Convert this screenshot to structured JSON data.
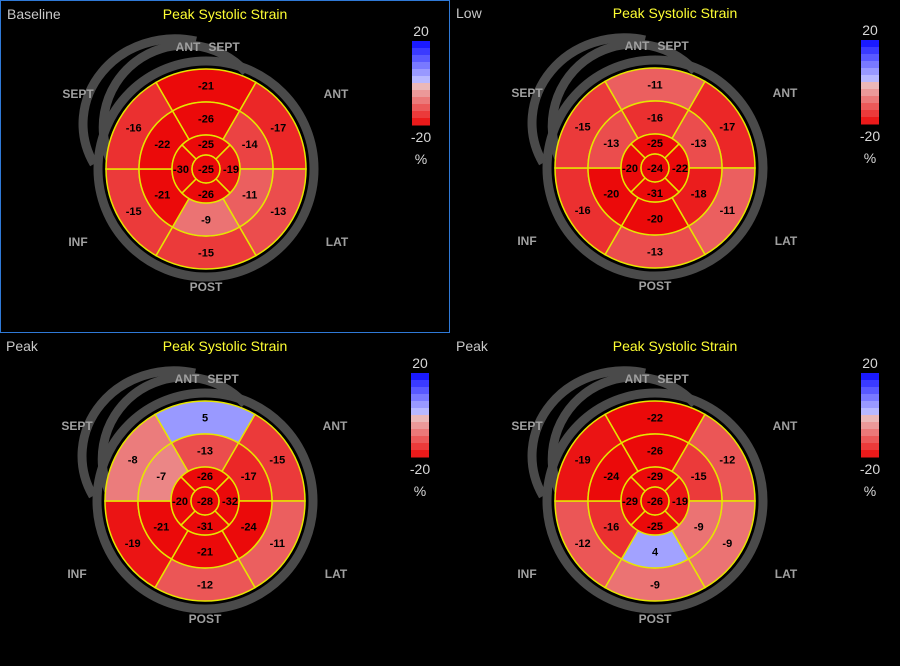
{
  "panels": [
    {
      "label": "Baseline",
      "title": "Peak Systolic Strain",
      "selected": true,
      "orientation": {
        "ant_sept": "ANT",
        "sept_top": "SEPT",
        "sept": "SEPT",
        "ant": "ANT",
        "inf": "INF",
        "lat": "LAT",
        "post": "POST"
      },
      "segments": {
        "outer": [
          -21,
          -17,
          -13,
          -15,
          -15,
          -16
        ],
        "mid": [
          -26,
          -14,
          -11,
          -9,
          -21,
          -22
        ],
        "inner": [
          -25,
          -19,
          -26,
          -30
        ],
        "apex": -25
      },
      "legend": {
        "max": "20",
        "min": "-20",
        "unit": "%"
      }
    },
    {
      "label": "Low",
      "title": "Peak Systolic Strain",
      "selected": false,
      "orientation": {
        "ant_sept": "ANT",
        "sept_top": "SEPT",
        "sept": "SEPT",
        "ant": "ANT",
        "inf": "INF",
        "lat": "LAT",
        "post": "POST"
      },
      "segments": {
        "outer": [
          -11,
          -17,
          -11,
          -13,
          -16,
          -15
        ],
        "mid": [
          -16,
          -13,
          -18,
          -20,
          -20,
          -13
        ],
        "inner": [
          -25,
          -22,
          -31,
          -20
        ],
        "apex": -24
      },
      "legend": {
        "max": "20",
        "min": "-20",
        "unit": "%"
      }
    },
    {
      "label": "Peak",
      "title": "Peak Systolic Strain",
      "selected": false,
      "orientation": {
        "ant_sept": "ANT",
        "sept_top": "SEPT",
        "sept": "SEPT",
        "ant": "ANT",
        "inf": "INF",
        "lat": "LAT",
        "post": "POST"
      },
      "segments": {
        "outer": [
          5,
          -15,
          -11,
          -12,
          -19,
          -8
        ],
        "mid": [
          -13,
          -17,
          -24,
          -21,
          -21,
          -7
        ],
        "inner": [
          -26,
          -32,
          -31,
          -20
        ],
        "apex": -28
      },
      "legend": {
        "max": "20",
        "min": "-20",
        "unit": "%"
      }
    },
    {
      "label": "Peak",
      "title": "Peak Systolic Strain",
      "selected": false,
      "orientation": {
        "ant_sept": "ANT",
        "sept_top": "SEPT",
        "sept": "SEPT",
        "ant": "ANT",
        "inf": "INF",
        "lat": "LAT",
        "post": "POST"
      },
      "segments": {
        "outer": [
          -22,
          -12,
          -9,
          -9,
          -12,
          -19
        ],
        "mid": [
          -26,
          -15,
          -9,
          4,
          -16,
          -24
        ],
        "inner": [
          -29,
          -19,
          -25,
          -29
        ],
        "apex": -26
      },
      "legend": {
        "max": "20",
        "min": "-20",
        "unit": "%"
      }
    }
  ],
  "colors": {
    "grid": "#e6e600",
    "ring": "#4a4a4a",
    "scale_positive": "#0000ff",
    "scale_negative": "#e00000"
  }
}
